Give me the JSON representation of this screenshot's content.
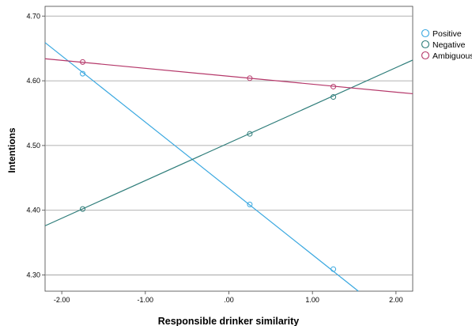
{
  "chart_data": {
    "type": "line",
    "title": "",
    "xlabel": "Responsible drinker similarity",
    "ylabel": "Intentions",
    "xlim": [
      -2.2,
      2.2
    ],
    "ylim": [
      4.275,
      4.715
    ],
    "x_ticks": [
      {
        "value": -2,
        "label": "-2.00"
      },
      {
        "value": -1,
        "label": "-1.00"
      },
      {
        "value": 0,
        "label": ".00"
      },
      {
        "value": 1,
        "label": "1.00"
      },
      {
        "value": 2,
        "label": "2.00"
      }
    ],
    "y_ticks": [
      {
        "value": 4.3,
        "label": "4.30"
      },
      {
        "value": 4.4,
        "label": "4.40"
      },
      {
        "value": 4.5,
        "label": "4.50"
      },
      {
        "value": 4.6,
        "label": "4.60"
      },
      {
        "value": 4.7,
        "label": "4.70"
      }
    ],
    "grid": "horizontal",
    "legend_position": "top-right",
    "series": [
      {
        "name": "Positive",
        "color": "#3aa8e0",
        "line_x": [
          -2.2,
          1.55
        ],
        "line_y": [
          4.659,
          4.275
        ],
        "points_x": [
          -1.75,
          0.25,
          1.25
        ],
        "points_y": [
          4.611,
          4.409,
          4.309
        ]
      },
      {
        "name": "Negative",
        "color": "#2e7d7a",
        "line_x": [
          -2.2,
          2.2
        ],
        "line_y": [
          4.376,
          4.632
        ],
        "points_x": [
          -1.75,
          0.25,
          1.25
        ],
        "points_y": [
          4.402,
          4.518,
          4.575
        ]
      },
      {
        "name": "Ambiguous",
        "color": "#b5386a",
        "line_x": [
          -2.2,
          2.2
        ],
        "line_y": [
          4.634,
          4.58
        ],
        "points_x": [
          -1.75,
          0.25,
          1.25
        ],
        "points_y": [
          4.629,
          4.604,
          4.591
        ]
      }
    ]
  }
}
